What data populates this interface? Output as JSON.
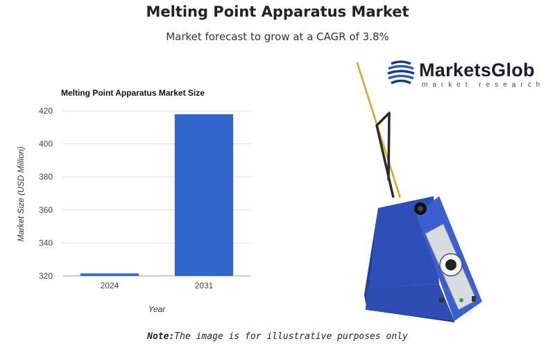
{
  "header": {
    "title": "Melting Point Apparatus Market",
    "subtitle": "Market forecast to grow at a CAGR of 3.8%"
  },
  "logo": {
    "name": "MarketsGlob",
    "tagline": "market research"
  },
  "note": {
    "label": "Note:",
    "text": "The image is for illustrative purposes only"
  },
  "colors": {
    "bar": "#3366cc",
    "grid": "#dddddd"
  },
  "chart_data": {
    "type": "bar",
    "title": "Melting Point Apparatus Market Size",
    "xlabel": "Year",
    "ylabel": "Market Size (USD Million)",
    "categories": [
      "2024",
      "2031"
    ],
    "values": [
      321.5,
      418
    ],
    "ylim": [
      320,
      420
    ],
    "yticks": [
      320,
      340,
      360,
      380,
      400,
      420
    ],
    "grid": true,
    "legend": "none"
  }
}
